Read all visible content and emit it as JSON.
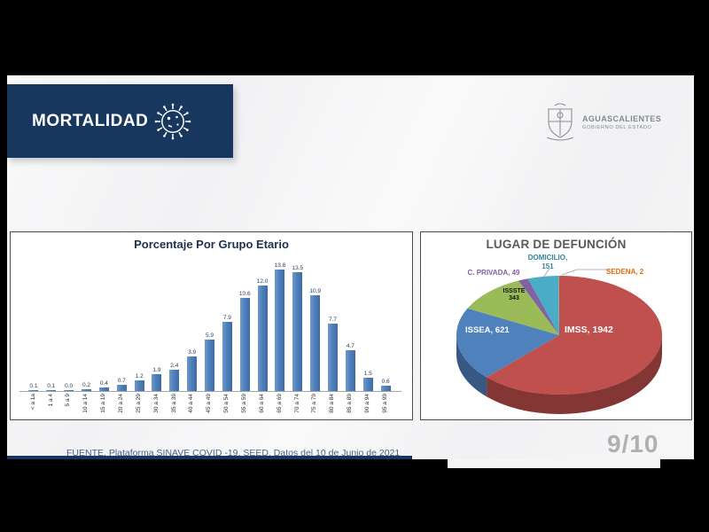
{
  "header": {
    "title": "MORTALIDAD",
    "logo_title": "AGUASCALIENTES",
    "logo_subtitle": "GOBIERNO DEL ESTADO"
  },
  "footer": {
    "source": "FUENTE. Plataforma SINAVE COVID -19. SEED. Datos del 10 de Junio de 2021",
    "page_number": "9/10"
  },
  "colors": {
    "header_navy": "#17375e",
    "bar_blue": "#4f81bd",
    "slide_bg": "#f6f6f7"
  },
  "chart_data": [
    {
      "type": "bar",
      "title": "Porcentaje Por Grupo Etario",
      "categories": [
        "< a 1a",
        "1 a 4",
        "5 a 9",
        "10 a 14",
        "15 a 19",
        "20 a 24",
        "25 a 29",
        "30 a 34",
        "35 a 39",
        "40 a 44",
        "45 a 49",
        "50 a 54",
        "55 a 59",
        "60 a 64",
        "65 a 69",
        "70 a 74",
        "75 a 79",
        "80 a 84",
        "85 a 89",
        "90 a 94",
        "95 a 99"
      ],
      "values": [
        0.1,
        0.1,
        0.0,
        0.2,
        0.4,
        0.7,
        1.2,
        1.9,
        2.4,
        3.9,
        5.9,
        7.9,
        10.6,
        12.0,
        13.8,
        13.5,
        10.9,
        7.7,
        4.7,
        1.5,
        0.6
      ],
      "xlabel": "",
      "ylabel": "",
      "ylim": [
        0,
        14
      ],
      "grid": false,
      "legend": "none",
      "bar_color": "#4f81bd"
    },
    {
      "type": "pie",
      "title": "LUGAR DE DEFUNCIÓN",
      "style": "3d",
      "total": 3108,
      "slices": [
        {
          "id": "imss",
          "name": "IMSS",
          "value": 1942,
          "color": "#c0504d",
          "display": "IMSS, 1942",
          "label_color": "#ffffff"
        },
        {
          "id": "issea",
          "name": "ISSEA",
          "value": 621,
          "color": "#4f81bd",
          "display": "ISSEA, 621",
          "label_color": "#ffffff"
        },
        {
          "id": "issste",
          "name": "ISSSTE",
          "value": 343,
          "color": "#9bbb59",
          "display_line1": "ISSSTE",
          "display_line2": "343",
          "label_color": "#111111"
        },
        {
          "id": "cprivada",
          "name": "C. PRIVADA",
          "value": 49,
          "color": "#8064a2",
          "display": "C. PRIVADA, 49",
          "label_color": "#7f63a1"
        },
        {
          "id": "domicilio",
          "name": "DOMICILIO",
          "value": 151,
          "color": "#4bacc6",
          "display_line1": "DOMICILIO,",
          "display_line2": "151",
          "label_color": "#31849b"
        },
        {
          "id": "sedena",
          "name": "SEDENA",
          "value": 2,
          "color": "#f79646",
          "display": "SEDENA, 2",
          "label_color": "#e36c09"
        }
      ]
    }
  ]
}
